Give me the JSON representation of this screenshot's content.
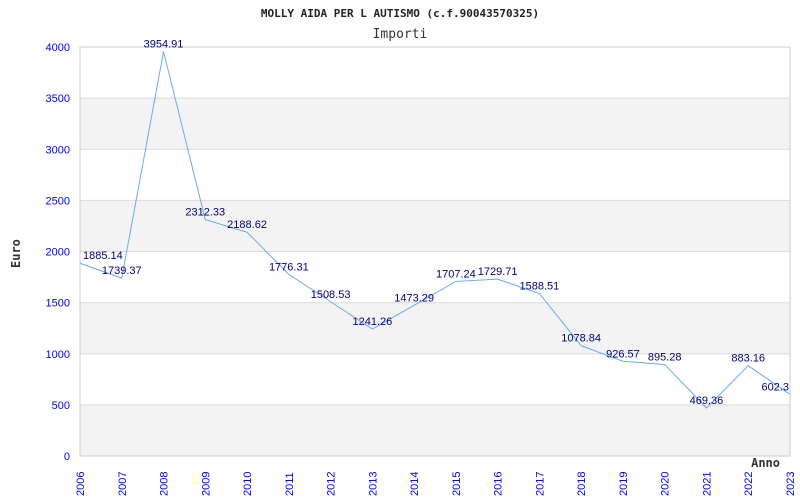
{
  "chart_data": {
    "type": "line",
    "title": "MOLLY AIDA PER L AUTISMO (c.f.90043570325)",
    "subtitle": "Importi",
    "xlabel": "Anno",
    "ylabel": "Euro",
    "ylim": [
      0,
      4000
    ],
    "yticks": [
      "0",
      "500",
      "1000",
      "1500",
      "2000",
      "2500",
      "3000",
      "3500",
      "4000"
    ],
    "x": [
      "2006",
      "2007",
      "2008",
      "2009",
      "2010",
      "2011",
      "2012",
      "2013",
      "2014",
      "2015",
      "2016",
      "2017",
      "2018",
      "2019",
      "2020",
      "2021",
      "2022",
      "2023"
    ],
    "values": [
      1885.14,
      1739.37,
      3954.91,
      2312.33,
      2188.62,
      1776.31,
      1508.53,
      1241.26,
      1473.29,
      1707.24,
      1729.71,
      1588.51,
      1078.84,
      926.57,
      895.28,
      469.36,
      883.16,
      602.3
    ],
    "labels": [
      "1885.14",
      "1739.37",
      "3954.91",
      "2312.33",
      "2188.62",
      "1776.31",
      "1508.53",
      "1241.26",
      "1473.29",
      "1707.24",
      "1729.71",
      "1588.51",
      "1078.84",
      "926.57",
      "895.28",
      "469.36",
      "883.16",
      "602.3"
    ],
    "grid": true,
    "colors": {
      "line": "#6aaaf0",
      "label": "#000080",
      "tick": "#0000ff",
      "band": "#f3f3f3"
    }
  }
}
